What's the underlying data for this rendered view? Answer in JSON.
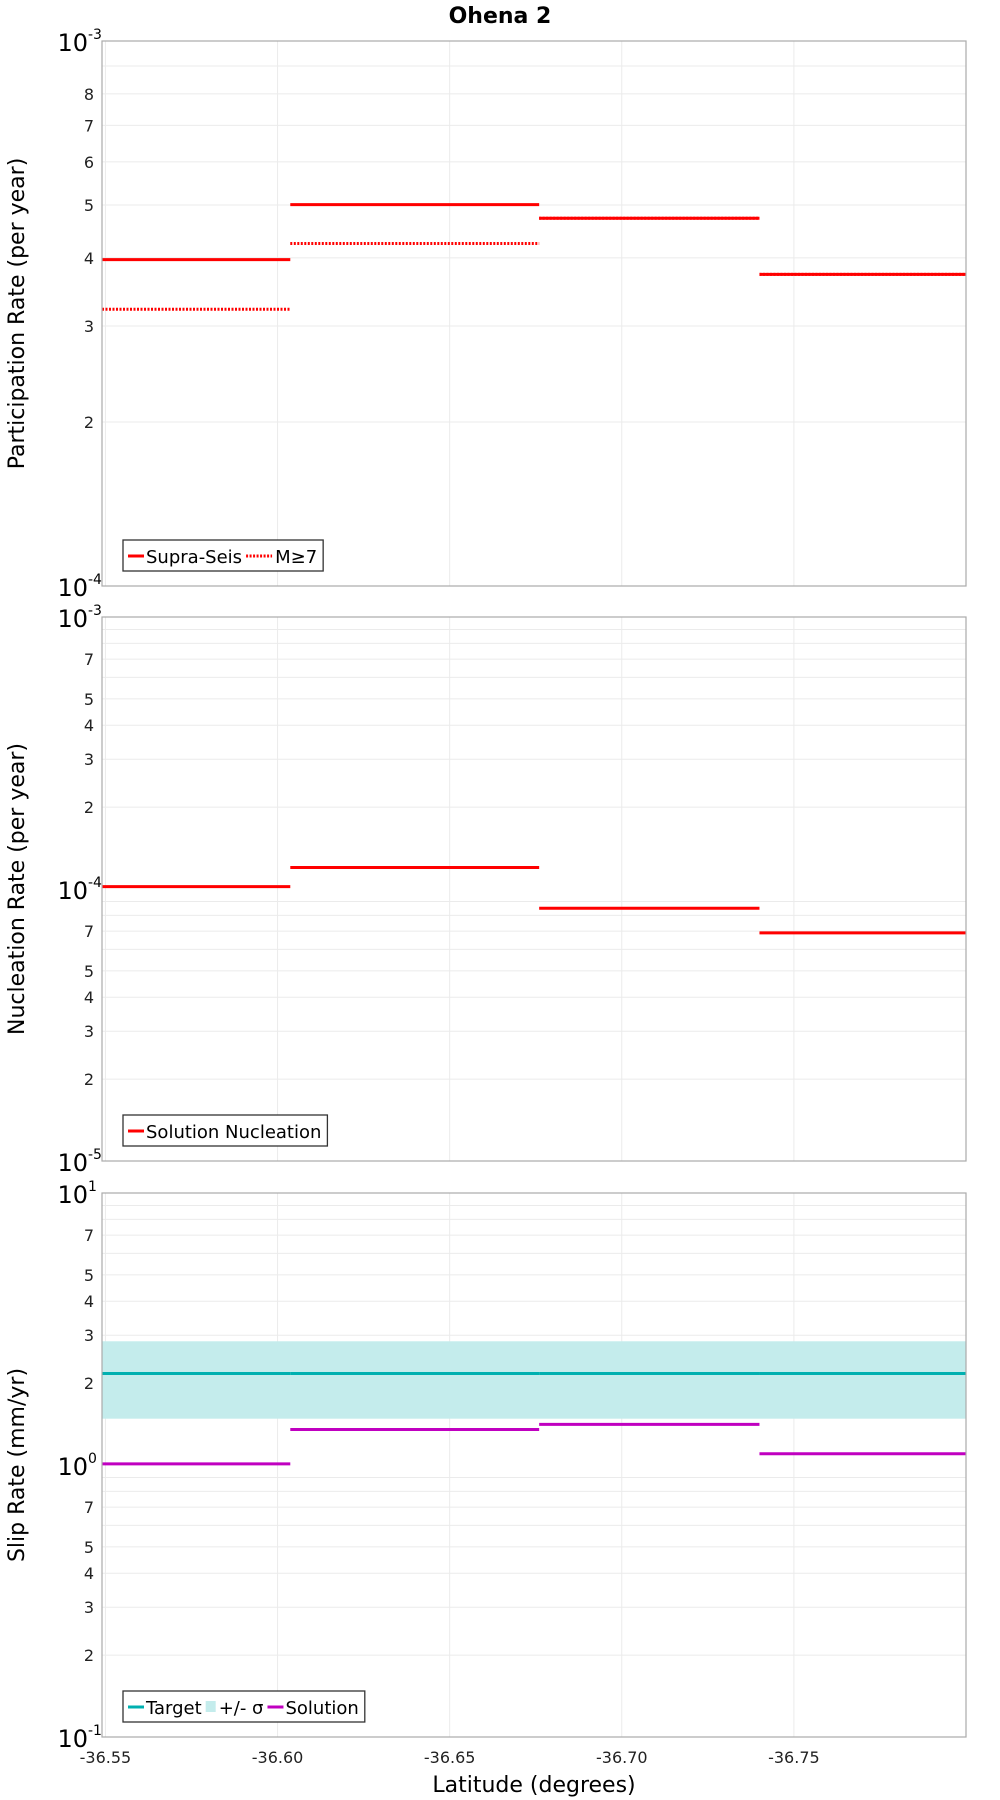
{
  "chart_data": {
    "title": "Ohena 2",
    "xlabel": "Latitude (degrees)",
    "xlim": [
      -36.549,
      -36.8
    ],
    "xticks": [
      -36.55,
      -36.6,
      -36.65,
      -36.7,
      -36.75
    ],
    "xtick_labels": [
      "-36.55",
      "-36.60",
      "-36.65",
      "-36.70",
      "-36.75"
    ],
    "segments": [
      [
        -36.549,
        -36.6037
      ],
      [
        -36.6037,
        -36.676
      ],
      [
        -36.676,
        -36.74
      ],
      [
        -36.74,
        -36.8
      ]
    ],
    "panels": [
      {
        "type": "line",
        "ylabel": "Participation Rate (per year)",
        "yscale": "log",
        "ylim": [
          0.0001,
          0.001
        ],
        "decade_labels": [
          {
            "base": "10",
            "exp": "-4",
            "value": 0.0001
          },
          {
            "base": "10",
            "exp": "-3",
            "value": 0.001
          }
        ],
        "minor_labels": [
          2,
          3,
          4,
          5,
          6,
          7,
          8
        ],
        "series": [
          {
            "name": "Supra-Seis",
            "style": "solid",
            "color": "#ff0000",
            "values": [
              0.000397,
              0.000501,
              0.000473,
              0.000373
            ]
          },
          {
            "name": "M≥7",
            "style": "dotted",
            "color": "#ff0000",
            "values": [
              0.000322,
              0.000425,
              0.000473,
              0.000373
            ]
          }
        ],
        "legend": "bottom-left"
      },
      {
        "type": "line",
        "ylabel": "Nucleation Rate (per year)",
        "yscale": "log",
        "ylim": [
          1e-05,
          0.001
        ],
        "decade_labels": [
          {
            "base": "10",
            "exp": "-5",
            "value": 1e-05
          },
          {
            "base": "10",
            "exp": "-4",
            "value": 0.0001
          },
          {
            "base": "10",
            "exp": "-3",
            "value": 0.001
          }
        ],
        "minor_labels": [
          2,
          3,
          4,
          5,
          7
        ],
        "series": [
          {
            "name": "Solution Nucleation",
            "style": "solid",
            "color": "#ff0000",
            "values": [
              0.000102,
              0.00012,
              8.5e-05,
              6.9e-05
            ]
          }
        ],
        "legend": "bottom-left"
      },
      {
        "type": "line",
        "ylabel": "Slip Rate (mm/yr)",
        "yscale": "log",
        "ylim": [
          0.1,
          10
        ],
        "decade_labels": [
          {
            "base": "10",
            "exp": "-1",
            "value": 0.1
          },
          {
            "base": "10",
            "exp": "0",
            "value": 1
          },
          {
            "base": "10",
            "exp": "1",
            "value": 10
          }
        ],
        "minor_labels": [
          2,
          3,
          4,
          5,
          7
        ],
        "band": {
          "name": "+/- σ",
          "color": "#c4ecec",
          "lower": 1.48,
          "upper": 2.85
        },
        "series": [
          {
            "name": "Target",
            "style": "solid",
            "color": "#00b0b0",
            "values": [
              2.17,
              2.17,
              2.17,
              2.17
            ]
          },
          {
            "name": "Solution",
            "style": "solid",
            "color": "#c000c0",
            "values": [
              1.01,
              1.35,
              1.41,
              1.1
            ]
          }
        ],
        "legend_order": [
          "Target",
          "+/- σ",
          "Solution"
        ],
        "legend": "bottom-left"
      }
    ]
  }
}
